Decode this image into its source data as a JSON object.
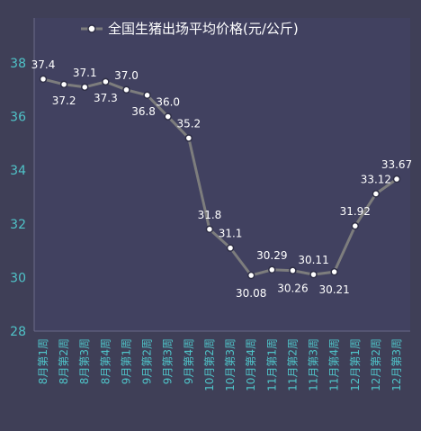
{
  "chart_data": {
    "type": "line",
    "title": "全国生猪出场平均价格(元/公斤)",
    "legend_position": "top-center",
    "grid": false,
    "ylim": [
      28,
      38
    ],
    "yticks": [
      "28",
      "30",
      "32",
      "34",
      "36",
      "38"
    ],
    "categories": [
      "8月第1周",
      "8月第2周",
      "8月第3周",
      "8月第4周",
      "9月第1周",
      "9月第2周",
      "9月第3周",
      "9月第4周",
      "10月第2周",
      "10月第3周",
      "10月第4周",
      "11月第1周",
      "11月第2周",
      "11月第3周",
      "11月第4周",
      "12月第1周",
      "12月第2周",
      "12月第3周"
    ],
    "series": [
      {
        "name": "全国生猪出场平均价格(元/公斤)",
        "values": [
          37.4,
          37.2,
          37.1,
          37.3,
          37.0,
          36.8,
          36.0,
          35.2,
          31.8,
          31.1,
          30.08,
          30.29,
          30.26,
          30.11,
          30.21,
          31.92,
          33.12,
          33.67
        ],
        "labels": [
          "37.4",
          "37.2",
          "37.1",
          "37.3",
          "37.0",
          "36.8",
          "36.0",
          "35.2",
          "31.8",
          "31.1",
          "30.08",
          "30.29",
          "30.26",
          "30.11",
          "30.21",
          "31.92",
          "33.12",
          "33.67"
        ]
      }
    ]
  },
  "colors": {
    "background": "#3f3f57",
    "plot_background": "#414160",
    "axis": "#6a6a8a",
    "line": "#7d7d7d",
    "marker_fill": "#ffffff",
    "tick_text": "#4fc3c8",
    "label_text": "#ffffff"
  }
}
